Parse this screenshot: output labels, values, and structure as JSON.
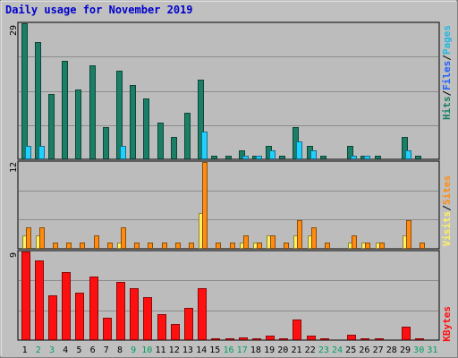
{
  "header": {
    "title": "Daily usage for November 2019"
  },
  "colors": {
    "background": "#c0c0c0",
    "plot_background": "#bcbcbc",
    "grid": "#8c8c8c",
    "hits": "#1a7f66",
    "files": "#20d0ff",
    "pages": "#20b8e0",
    "visits": "#fff060",
    "sites": "#ff8c10",
    "kbytes": "#ff1010",
    "weekend_label": "#00a060",
    "weekday_label": "#000000"
  },
  "chart_data": [
    {
      "type": "bar",
      "panel": "hits-files-pages",
      "title": "Daily usage for November 2019",
      "ymax_label": "29",
      "ylim": [
        0,
        29
      ],
      "grid": true,
      "legend": [
        {
          "text": "Hits",
          "color": "#1a7f66"
        },
        {
          "sep": "/"
        },
        {
          "text": "Files",
          "color": "#2060ff"
        },
        {
          "sep": "/"
        },
        {
          "text": "Pages",
          "color": "#20b8e0"
        }
      ],
      "categories": [
        "1",
        "2",
        "3",
        "4",
        "5",
        "6",
        "7",
        "8",
        "9",
        "10",
        "11",
        "12",
        "13",
        "14",
        "15",
        "16",
        "17",
        "18",
        "19",
        "20",
        "21",
        "22",
        "23",
        "24",
        "25",
        "26",
        "27",
        "28",
        "29",
        "30",
        "31"
      ],
      "series": [
        {
          "name": "Hits",
          "color": "#1a7f66",
          "values": [
            29,
            25,
            14,
            21,
            15,
            20,
            7,
            19,
            16,
            13,
            8,
            5,
            10,
            17,
            1,
            1,
            2,
            1,
            3,
            1,
            7,
            3,
            1,
            0,
            3,
            1,
            1,
            0,
            5,
            1,
            0
          ]
        },
        {
          "name": "Files",
          "color": "#20d0ff",
          "values": [
            3,
            3,
            0,
            0,
            0,
            0,
            0,
            3,
            0,
            0,
            0,
            0,
            0,
            6,
            0,
            0,
            1,
            1,
            2,
            0,
            4,
            2,
            0,
            0,
            1,
            1,
            0,
            0,
            2,
            0,
            0
          ]
        },
        {
          "name": "Pages",
          "color": "#20b8e0",
          "values": [
            0,
            0,
            0,
            0,
            0,
            0,
            0,
            0,
            0,
            0,
            0,
            0,
            0,
            0,
            0,
            0,
            0,
            0,
            0,
            0,
            0,
            0,
            0,
            0,
            0,
            0,
            0,
            0,
            0,
            0,
            0
          ]
        }
      ]
    },
    {
      "type": "bar",
      "panel": "visits-sites",
      "ymax_label": "12",
      "ylim": [
        0,
        12
      ],
      "grid": true,
      "legend": [
        {
          "text": "Visits",
          "color": "#fff060"
        },
        {
          "sep": "/"
        },
        {
          "text": "Sites",
          "color": "#ff8c10"
        }
      ],
      "categories": [
        "1",
        "2",
        "3",
        "4",
        "5",
        "6",
        "7",
        "8",
        "9",
        "10",
        "11",
        "12",
        "13",
        "14",
        "15",
        "16",
        "17",
        "18",
        "19",
        "20",
        "21",
        "22",
        "23",
        "24",
        "25",
        "26",
        "27",
        "28",
        "29",
        "30",
        "31"
      ],
      "series": [
        {
          "name": "Visits",
          "color": "#fff060",
          "values": [
            2,
            2,
            0,
            0,
            0,
            0,
            0,
            1,
            0,
            0,
            0,
            0,
            0,
            5,
            0,
            0,
            1,
            1,
            2,
            0,
            2,
            2,
            0,
            0,
            1,
            1,
            1,
            0,
            2,
            0,
            0
          ]
        },
        {
          "name": "Sites",
          "color": "#ff8c10",
          "values": [
            3,
            3,
            1,
            1,
            1,
            2,
            1,
            3,
            1,
            1,
            1,
            1,
            1,
            12,
            1,
            1,
            2,
            1,
            2,
            1,
            4,
            3,
            1,
            0,
            2,
            1,
            1,
            0,
            4,
            1,
            0
          ]
        }
      ]
    },
    {
      "type": "bar",
      "panel": "kbytes",
      "ymax_label": "9",
      "ylim": [
        0,
        9
      ],
      "grid": true,
      "legend": [
        {
          "text": "KBytes",
          "color": "#ff1010"
        }
      ],
      "categories": [
        "1",
        "2",
        "3",
        "4",
        "5",
        "6",
        "7",
        "8",
        "9",
        "10",
        "11",
        "12",
        "13",
        "14",
        "15",
        "16",
        "17",
        "18",
        "19",
        "20",
        "21",
        "22",
        "23",
        "24",
        "25",
        "26",
        "27",
        "28",
        "29",
        "30",
        "31"
      ],
      "series": [
        {
          "name": "KBytes",
          "color": "#ff1010",
          "values": [
            9,
            8.1,
            4.6,
            6.9,
            4.9,
            6.5,
            2.3,
            5.9,
            5.3,
            4.4,
            2.7,
            1.7,
            3.3,
            5.3,
            0.3,
            0.3,
            0.4,
            0.3,
            0.5,
            0.3,
            2.2,
            0.5,
            0.2,
            0,
            0.6,
            0.2,
            0.3,
            0,
            1.4,
            0.3,
            0
          ]
        }
      ]
    }
  ],
  "x_axis": {
    "days": [
      "1",
      "2",
      "3",
      "4",
      "5",
      "6",
      "7",
      "8",
      "9",
      "10",
      "11",
      "12",
      "13",
      "14",
      "15",
      "16",
      "17",
      "18",
      "19",
      "20",
      "21",
      "22",
      "23",
      "24",
      "25",
      "26",
      "27",
      "28",
      "29",
      "30",
      "31"
    ],
    "weekend_days": [
      "2",
      "3",
      "9",
      "10",
      "16",
      "17",
      "23",
      "24",
      "30",
      "31"
    ]
  }
}
